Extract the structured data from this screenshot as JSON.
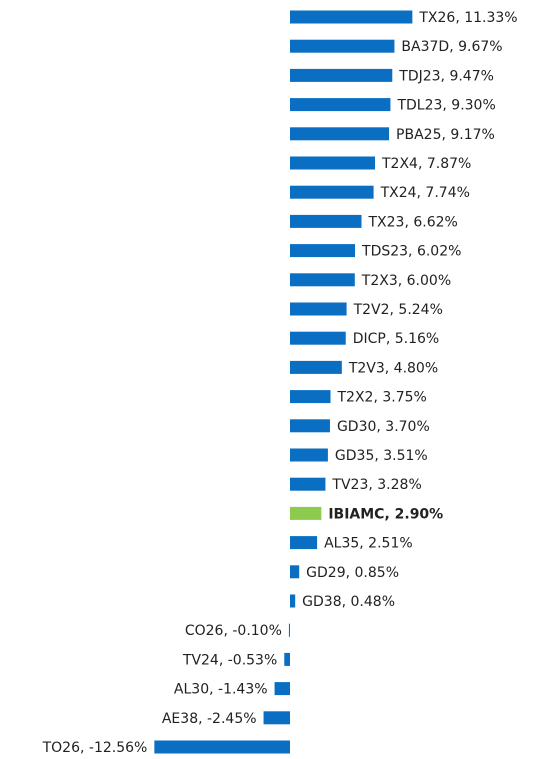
{
  "chart_data": {
    "type": "hbar",
    "categories": [
      "TX26",
      "BA37D",
      "TDJ23",
      "TDL23",
      "PBA25",
      "T2X4",
      "TX24",
      "TX23",
      "TDS23",
      "T2X3",
      "T2V2",
      "DICP",
      "T2V3",
      "T2X2",
      "GD30",
      "GD35",
      "TV23",
      "IBIAMC",
      "AL35",
      "GD29",
      "GD38",
      "CO26",
      "TV24",
      "AL30",
      "AE38",
      "TO26"
    ],
    "values": [
      11.33,
      9.67,
      9.47,
      9.3,
      9.17,
      7.87,
      7.74,
      6.62,
      6.02,
      6.0,
      5.24,
      5.16,
      4.8,
      3.75,
      3.7,
      3.51,
      3.28,
      2.9,
      2.51,
      0.85,
      0.48,
      -0.1,
      -0.53,
      -1.43,
      -2.45,
      -12.56
    ],
    "value_labels": [
      "TX26, 11.33%",
      "BA37D, 9.67%",
      "TDJ23, 9.47%",
      "TDL23, 9.30%",
      "PBA25, 9.17%",
      "T2X4, 7.87%",
      "TX24, 7.74%",
      "TX23, 6.62%",
      "TDS23, 6.02%",
      "T2X3, 6.00%",
      "T2V2, 5.24%",
      "DICP, 5.16%",
      "T2V3, 4.80%",
      "T2X2, 3.75%",
      "GD30, 3.70%",
      "GD35, 3.51%",
      "TV23, 3.28%",
      "IBIAMC, 2.90%",
      "AL35, 2.51%",
      "GD29, 0.85%",
      "GD38, 0.48%",
      "CO26, -0.10%",
      "TV24, -0.53%",
      "AL30, -1.43%",
      "AE38, -2.45%",
      "TO26, -12.56%"
    ],
    "colors": [
      "#0a6fc2",
      "#0a6fc2",
      "#0a6fc2",
      "#0a6fc2",
      "#0a6fc2",
      "#0a6fc2",
      "#0a6fc2",
      "#0a6fc2",
      "#0a6fc2",
      "#0a6fc2",
      "#0a6fc2",
      "#0a6fc2",
      "#0a6fc2",
      "#0a6fc2",
      "#0a6fc2",
      "#0a6fc2",
      "#0a6fc2",
      "#8dcb4e",
      "#0a6fc2",
      "#0a6fc2",
      "#0a6fc2",
      "#0a6fc2",
      "#0a6fc2",
      "#0a6fc2",
      "#0a6fc2",
      "#0a6fc2"
    ],
    "bold": [
      "IBIAMC"
    ]
  }
}
